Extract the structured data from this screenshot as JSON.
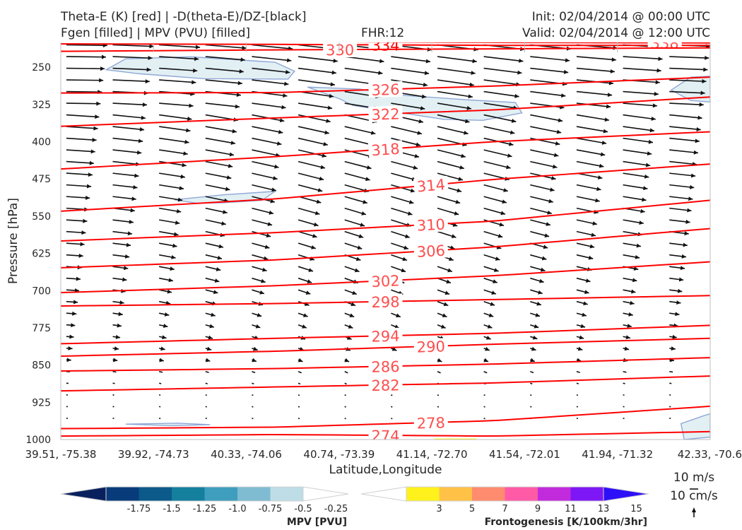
{
  "header": {
    "title_line1": "Theta-E (K) [red] | -D(theta-E)/DZ-[black]",
    "title_line2": "Fgen [filled] | MPV (PVU) [filled]",
    "fhr": "FHR:12",
    "init": "Init: 02/04/2014 @ 00:00 UTC",
    "valid": "Valid: 02/04/2014 @ 12:00 UTC"
  },
  "chart_data": {
    "type": "cross-section contour + vector",
    "ylabel": "Pressure [hPa]",
    "xlabel": "Latitude,Longitude",
    "y_ticks": [
      250,
      325,
      400,
      475,
      550,
      625,
      700,
      775,
      850,
      925,
      1000
    ],
    "ylim": [
      1000,
      200
    ],
    "y_scale": "linear, inverted",
    "x_ticks": [
      "39.51, -75.38",
      "39.92, -74.73",
      "40.33, -74.06",
      "40.74, -73.39",
      "41.14, -72.70",
      "41.54, -72.01",
      "41.94, -71.32",
      "42.33, -70.6"
    ],
    "grid": false,
    "theta_e_contours": {
      "color": "#ff0000",
      "label_color": "#ff4d4d",
      "levels": [
        {
          "label": "334",
          "p": [
            203,
            204,
            206,
            206
          ]
        },
        {
          "label": "338",
          "p": [
            196,
            198,
            200,
            201
          ]
        },
        {
          "label": "330",
          "p": [
            218,
            215,
            213,
            211
          ]
        },
        {
          "label": "326",
          "p": [
            302,
            301,
            288,
            270
          ]
        },
        {
          "label": "322",
          "p": [
            369,
            352,
            336,
            310
          ]
        },
        {
          "label": "318",
          "p": [
            455,
            430,
            400,
            380
          ]
        },
        {
          "label": "314",
          "p": [
            540,
            515,
            476,
            445
          ]
        },
        {
          "label": "310",
          "p": [
            600,
            583,
            560,
            518
          ]
        },
        {
          "label": "306",
          "p": [
            654,
            638,
            612,
            575
          ]
        },
        {
          "label": "302",
          "p": [
            704,
            690,
            670,
            642
          ]
        },
        {
          "label": "298",
          "p": [
            731,
            726,
            718,
            710
          ]
        },
        {
          "label": "294",
          "p": [
            807,
            796,
            786,
            770
          ]
        },
        {
          "label": "290",
          "p": [
            832,
            822,
            808,
            796
          ]
        },
        {
          "label": "286",
          "p": [
            862,
            857,
            848,
            835
          ]
        },
        {
          "label": "282",
          "p": [
            902,
            894,
            886,
            872
          ]
        },
        {
          "label": "278",
          "p": [
            978,
            975,
            962,
            933
          ]
        },
        {
          "label": "274",
          "p": [
            993,
            990,
            993,
            984
          ]
        }
      ]
    },
    "mpv_filled_regions": "small patches in the -0.25 bin near 250-325 hPa and near 1000 hPa",
    "frontogenesis_filled": "small patch in the 3 bin near 1000 hPa at 41.14, -72.70",
    "wind_vectors": {
      "color": "#111111",
      "direction": "westerly, increasing with height"
    },
    "colorbars": [
      {
        "label": "MPV [PVU]",
        "ticks": [
          "-1.75",
          "-1.5",
          "-1.25",
          "-1.0",
          "-0.75",
          "-0.5",
          "-0.25"
        ],
        "colors": [
          "#08205e",
          "#083b7a",
          "#0b5a8a",
          "#157f9e",
          "#3f9dbd",
          "#7fbcd2",
          "#bfdde6",
          "#ffffff"
        ]
      },
      {
        "label": "Frontogenesis [K/100km/3hr]",
        "ticks": [
          "3",
          "5",
          "7",
          "9",
          "11",
          "13",
          "15"
        ],
        "colors": [
          "#ffffff",
          "#fff21c",
          "#ffc247",
          "#ff8c6e",
          "#ff5aa6",
          "#c12bdc",
          "#7e17f5",
          "#2d10f7"
        ]
      }
    ],
    "reference_vectors": [
      "10 m/s",
      "10 cm/s"
    ]
  }
}
